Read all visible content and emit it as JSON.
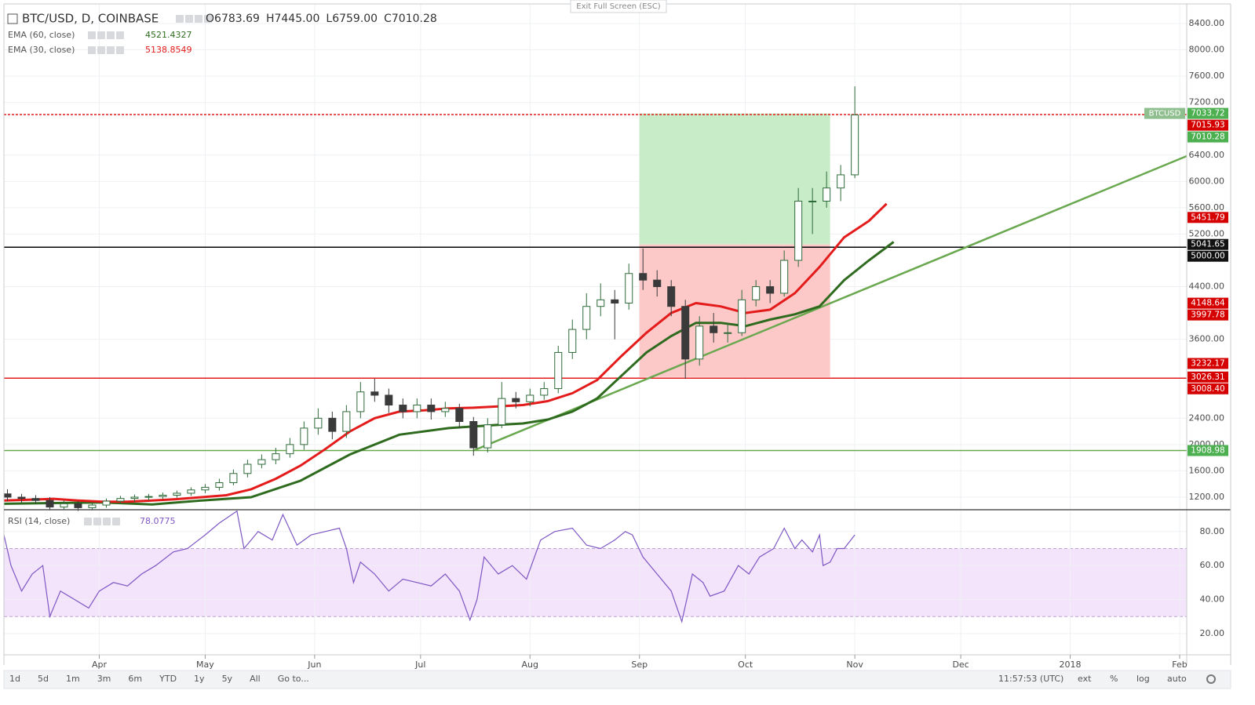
{
  "exit_fullscreen": "Exit Full Screen (ESC)",
  "toolbar": {
    "ranges": [
      "1d",
      "5d",
      "1m",
      "3m",
      "6m",
      "YTD",
      "1y",
      "5y",
      "All"
    ],
    "goto": "Go to...",
    "time": "11:57:53 (UTC)",
    "options": [
      "ext",
      "%",
      "log",
      "auto"
    ]
  },
  "chart_data": [
    {
      "type": "candlestick",
      "title": "BTC/USD, D, COINBASE",
      "symbol_label": "BTCUSD",
      "ohlc_legend": [
        {
          "label": "O",
          "value": 6783.69
        },
        {
          "label": "H",
          "value": 7445
        },
        {
          "label": "L",
          "value": 6759
        },
        {
          "label": "C",
          "value": 7010.28
        }
      ],
      "ohlc_legend_labels": {
        "1": "7445.00",
        "2": "6759.00"
      },
      "up_color": "#2f6b3a",
      "down_color": "#3a3a3a",
      "x": [
        65,
        69,
        73,
        77,
        81,
        85,
        89,
        93,
        97,
        101,
        105,
        109,
        113,
        117,
        121,
        125,
        129,
        133,
        137,
        141,
        145,
        149,
        153,
        157,
        161,
        165,
        169,
        173,
        177,
        181,
        185,
        189,
        193,
        197,
        201,
        205,
        209,
        213,
        217,
        221,
        225,
        229,
        233,
        237,
        241,
        245,
        249,
        253,
        257,
        261,
        265,
        269,
        273,
        277,
        281,
        285,
        289,
        293,
        297,
        301,
        305
      ],
      "open": [
        1250,
        1200,
        1180,
        1150,
        1050,
        1100,
        1040,
        1080,
        1140,
        1180,
        1200,
        1210,
        1230,
        1260,
        1310,
        1350,
        1420,
        1560,
        1700,
        1770,
        1860,
        2000,
        2250,
        2400,
        2200,
        2500,
        2800,
        2750,
        2600,
        2500,
        2600,
        2500,
        2550,
        2350,
        1950,
        2300,
        2700,
        2650,
        2750,
        2850,
        3400,
        3750,
        4100,
        4200,
        4150,
        4600,
        4500,
        4400,
        4100,
        3300,
        3800,
        3700,
        3700,
        4200,
        4400,
        4300,
        4800,
        5700,
        5700,
        5900,
        6100
      ],
      "high": [
        1320,
        1250,
        1230,
        1200,
        1150,
        1140,
        1120,
        1180,
        1220,
        1240,
        1250,
        1270,
        1300,
        1350,
        1400,
        1480,
        1620,
        1770,
        1850,
        1950,
        2100,
        2350,
        2550,
        2500,
        2600,
        2950,
        3000,
        2850,
        2700,
        2700,
        2700,
        2650,
        2620,
        2420,
        2400,
        2950,
        2800,
        2850,
        2950,
        3500,
        3900,
        4300,
        4450,
        4350,
        4750,
        4980,
        4650,
        4500,
        4200,
        3950,
        4000,
        3850,
        4350,
        4500,
        4500,
        4950,
        5900,
        5900,
        6150,
        6250,
        7445
      ],
      "low": [
        1140,
        1120,
        1100,
        1000,
        1010,
        990,
        1000,
        1040,
        1100,
        1130,
        1150,
        1170,
        1190,
        1220,
        1260,
        1300,
        1380,
        1500,
        1640,
        1700,
        1800,
        1920,
        2150,
        2080,
        2100,
        2400,
        2650,
        2480,
        2400,
        2400,
        2380,
        2420,
        2250,
        1830,
        1880,
        2250,
        2550,
        2580,
        2680,
        2780,
        3300,
        3600,
        3950,
        3600,
        4050,
        4350,
        4250,
        3950,
        3000,
        3200,
        3550,
        3550,
        3650,
        4100,
        4150,
        4250,
        4700,
        5200,
        5600,
        5700,
        6050
      ],
      "close": [
        1200,
        1180,
        1150,
        1050,
        1100,
        1040,
        1080,
        1140,
        1180,
        1200,
        1210,
        1230,
        1260,
        1310,
        1350,
        1420,
        1560,
        1700,
        1770,
        1860,
        2000,
        2250,
        2400,
        2200,
        2500,
        2800,
        2750,
        2600,
        2500,
        2600,
        2500,
        2550,
        2350,
        1950,
        2300,
        2700,
        2650,
        2750,
        2850,
        3400,
        3750,
        4100,
        4200,
        4150,
        4600,
        4500,
        4400,
        4100,
        3300,
        3800,
        3700,
        3700,
        4200,
        4400,
        4300,
        4800,
        5700,
        5700,
        5900,
        6100,
        7010.28
      ],
      "series": [
        {
          "name": "EMA (60, close)",
          "color": "#2e6b1e",
          "legend_value": 4521.4327,
          "x": [
            64,
            78,
            92,
            106,
            120,
            134,
            148,
            162,
            176,
            190,
            204,
            211,
            218,
            225,
            232,
            239,
            246,
            253,
            260,
            267,
            274,
            281,
            288,
            295,
            302,
            309,
            316
          ],
          "values": [
            1100,
            1110,
            1120,
            1090,
            1150,
            1200,
            1450,
            1850,
            2150,
            2250,
            2300,
            2320,
            2380,
            2500,
            2700,
            3050,
            3400,
            3650,
            3850,
            3850,
            3800,
            3900,
            3980,
            4100,
            4500,
            4800,
            5080
          ]
        },
        {
          "name": "EMA (30, close)",
          "color": "#e31b1b",
          "legend_value": 5138.8549,
          "x": [
            64,
            71,
            78,
            85,
            92,
            99,
            106,
            113,
            120,
            127,
            134,
            141,
            148,
            155,
            162,
            169,
            176,
            183,
            190,
            197,
            204,
            211,
            218,
            225,
            232,
            239,
            246,
            253,
            260,
            267,
            274,
            281,
            288,
            295,
            302,
            309,
            314
          ],
          "values": [
            1150,
            1160,
            1175,
            1150,
            1130,
            1130,
            1150,
            1170,
            1200,
            1230,
            1320,
            1480,
            1680,
            1930,
            2200,
            2400,
            2500,
            2520,
            2550,
            2560,
            2580,
            2600,
            2660,
            2780,
            2980,
            3350,
            3700,
            4000,
            4150,
            4100,
            4000,
            4050,
            4300,
            4700,
            5150,
            5400,
            5660
          ]
        }
      ],
      "hlines": [
        {
          "value": 7015.93,
          "color": "#e31b1b",
          "dashed": true
        },
        {
          "value": 5000,
          "color": "#000000"
        },
        {
          "value": 3008.4,
          "color": "#e31b1b"
        },
        {
          "value": 1908.98,
          "color": "#6aa84f"
        }
      ],
      "position": {
        "start": 244,
        "end": 298,
        "target": 7033.72,
        "entry": 5041.65,
        "stop": 3026.31,
        "profit_color": "#c8ebc8",
        "loss_color": "#fcc8c8"
      },
      "trendline": {
        "x": [
          197,
          399
        ],
        "values": [
          1908.98,
          6385
        ],
        "color": "#6aa84f"
      },
      "price_labels": [
        {
          "value": 7033.72,
          "color": "#4caf50"
        },
        {
          "value": 7015.93,
          "color": "#d50000"
        },
        {
          "value": 7010.28,
          "color": "#4caf50"
        },
        {
          "value": 5451.79,
          "color": "#d50000"
        },
        {
          "value": 5041.65,
          "color": "#111111"
        },
        {
          "value": 5000,
          "label": "5000.00",
          "color": "#111111"
        },
        {
          "value": 4148.64,
          "color": "#d50000"
        },
        {
          "value": 3997.78,
          "color": "#d50000"
        },
        {
          "value": 3232.17,
          "color": "#d50000"
        },
        {
          "value": 3026.31,
          "color": "#d50000"
        },
        {
          "value": 3008.4,
          "label": "3008.40",
          "color": "#d50000"
        },
        {
          "value": 1908.98,
          "color": "#4caf50"
        }
      ],
      "xlim": [
        64,
        399
      ],
      "xticks": [
        {
          "value": 91,
          "label": "Apr"
        },
        {
          "value": 121,
          "label": "May"
        },
        {
          "value": 152,
          "label": "Jun"
        },
        {
          "value": 182,
          "label": "Jul"
        },
        {
          "value": 213,
          "label": "Aug"
        },
        {
          "value": 244,
          "label": "Sep"
        },
        {
          "value": 274,
          "label": "Oct"
        },
        {
          "value": 305,
          "label": "Nov"
        },
        {
          "value": 335,
          "label": "Dec"
        },
        {
          "value": 366,
          "label": "2018"
        },
        {
          "value": 397,
          "label": "Feb"
        }
      ],
      "ylim": [
        1009,
        8698
      ],
      "yticks": [
        {
          "value": 1200,
          "label": "1200.00"
        },
        {
          "value": 1600,
          "label": "1600.00"
        },
        {
          "value": 2000,
          "label": "2000.00"
        },
        {
          "value": 2400,
          "label": "2400.00"
        },
        {
          "value": 3600,
          "label": "3600.00"
        },
        {
          "value": 4400,
          "label": "4400.00"
        },
        {
          "value": 5200,
          "label": "5200.00"
        },
        {
          "value": 5600,
          "label": "5600.00"
        },
        {
          "value": 6000,
          "label": "6000.00"
        },
        {
          "value": 6400,
          "label": "6400.00"
        },
        {
          "value": 7200,
          "label": "7200.00"
        },
        {
          "value": 7600,
          "label": "7600.00"
        },
        {
          "value": 8000,
          "label": "8000.00"
        },
        {
          "value": 8400,
          "label": "8400.00"
        }
      ],
      "grid": true
    },
    {
      "type": "line",
      "name": "RSI (14, close)",
      "legend_value": 78.0775,
      "color": "#7e57c2",
      "x": [
        64,
        66,
        69,
        72,
        75,
        77,
        80,
        84,
        88,
        91,
        95,
        99,
        103,
        107,
        112,
        116,
        121,
        125,
        130,
        132,
        136,
        140,
        143,
        147,
        151,
        155,
        159,
        161,
        163,
        165,
        169,
        173,
        177,
        181,
        185,
        189,
        193,
        196,
        198,
        200,
        204,
        208,
        212,
        216,
        220,
        225,
        229,
        233,
        237,
        240,
        242,
        245,
        249,
        253,
        256,
        259,
        262,
        264,
        268,
        272,
        275,
        278,
        282,
        285,
        288,
        290,
        293,
        295,
        296,
        298,
        300,
        302,
        305
      ],
      "values": [
        78,
        60,
        45,
        55,
        60,
        30,
        45,
        40,
        35,
        45,
        50,
        48,
        55,
        60,
        68,
        70,
        78,
        85,
        92,
        70,
        80,
        75,
        90,
        72,
        78,
        80,
        82,
        70,
        50,
        62,
        55,
        45,
        52,
        50,
        48,
        55,
        45,
        28,
        40,
        65,
        55,
        60,
        52,
        75,
        80,
        82,
        72,
        70,
        75,
        80,
        78,
        65,
        55,
        45,
        27,
        55,
        50,
        42,
        45,
        60,
        55,
        65,
        70,
        82,
        70,
        75,
        68,
        78,
        60,
        62,
        70,
        70,
        78
      ],
      "band": [
        30,
        70
      ],
      "band_color": "#f3e3fb",
      "xlim": [
        64,
        399
      ],
      "ylim": [
        7.5,
        91.9
      ],
      "yticks": [
        {
          "value": 20,
          "label": "20.00"
        },
        {
          "value": 40,
          "label": "40.00"
        },
        {
          "value": 60,
          "label": "60.00"
        },
        {
          "value": 80,
          "label": "80.00"
        }
      ],
      "grid": true
    }
  ]
}
